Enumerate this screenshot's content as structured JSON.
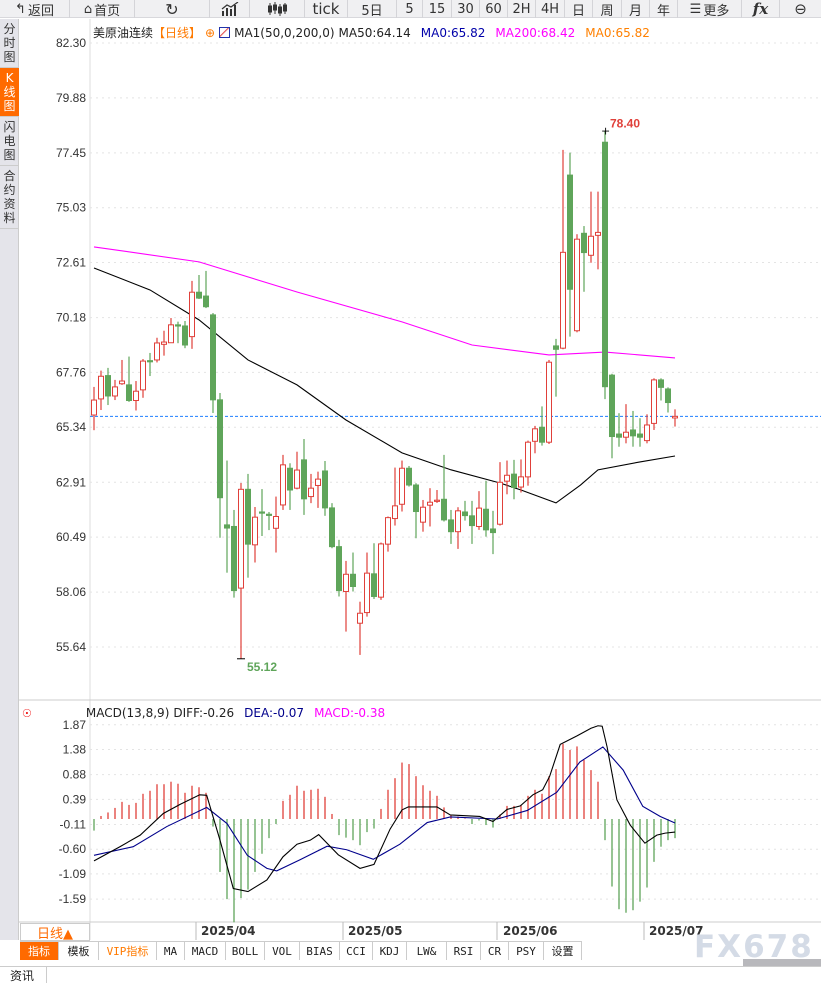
{
  "toolbar": {
    "back": "返回",
    "home": "首页",
    "tick": "tick",
    "items": [
      "5日",
      "5",
      "15",
      "30",
      "60",
      "2H",
      "4H",
      "日",
      "周",
      "月",
      "年"
    ],
    "more": "更多",
    "fx": "fx",
    "icons": [
      "back-arrow-icon",
      "home-icon",
      "refresh-icon",
      "indicator-chart-icon",
      "candlestick-icon",
      "menu-icon",
      "zoom-out-icon"
    ]
  },
  "sidebar": {
    "tabs": [
      "分时图",
      "K线图",
      "闪电图",
      "合约资料"
    ],
    "active": 1
  },
  "legend": {
    "symbol": "美原油连续",
    "period": "【日线】",
    "ma_name": "MA1(50,0,200,0)",
    "ma50": "MA50:64.14",
    "ma0a": "MA0:65.82",
    "ma200": "MA200:68.42",
    "ma0b": "MA0:65.82"
  },
  "colors": {
    "up": "#e0403a",
    "down": "#5fa55a",
    "ma50": "#000000",
    "ma200": "#ff00ff",
    "ma0a": "#0000aa",
    "ma0b": "#ff8000",
    "dea": "#00008b",
    "current": "#1e7fff",
    "accent": "#ff6a00"
  },
  "chart_data": [
    {
      "type": "candlestick",
      "title": "美原油连续 【日线】",
      "ylim": [
        55.64,
        82.3
      ],
      "y_ticks": [
        "82.30",
        "79.88",
        "77.45",
        "75.03",
        "72.61",
        "70.18",
        "67.76",
        "65.34",
        "62.91",
        "60.49",
        "58.06",
        "55.64"
      ],
      "x_labels": [
        {
          "index": 15,
          "label": "2025/04"
        },
        {
          "index": 36,
          "label": "2025/05"
        },
        {
          "index": 58,
          "label": "2025/06"
        },
        {
          "index": 79,
          "label": "2025/07"
        }
      ],
      "ohlc": [
        [
          65.88,
          67.12,
          65.21,
          66.54
        ],
        [
          66.59,
          67.84,
          66.1,
          67.59
        ],
        [
          67.62,
          67.96,
          66.32,
          66.72
        ],
        [
          66.72,
          67.43,
          66.54,
          67.12
        ],
        [
          67.26,
          68.31,
          67.21,
          67.38
        ],
        [
          67.21,
          68.46,
          66.46,
          66.52
        ],
        [
          66.52,
          67.38,
          66.08,
          66.93
        ],
        [
          66.99,
          68.35,
          66.64,
          68.26
        ],
        [
          68.28,
          68.62,
          67.6,
          68.26
        ],
        [
          68.31,
          69.29,
          68.2,
          69.06
        ],
        [
          69.0,
          69.6,
          68.5,
          69.1
        ],
        [
          69.07,
          70.16,
          69.06,
          69.86
        ],
        [
          69.86,
          70.0,
          69.05,
          69.84
        ],
        [
          69.81,
          70.03,
          68.83,
          68.97
        ],
        [
          69.34,
          71.8,
          68.8,
          71.3
        ],
        [
          71.3,
          72.06,
          71.0,
          71.04
        ],
        [
          71.13,
          72.24,
          70.6,
          70.66
        ],
        [
          70.3,
          70.38,
          65.97,
          66.55
        ],
        [
          66.55,
          66.85,
          60.46,
          62.23
        ],
        [
          61.03,
          63.87,
          58.92,
          60.89
        ],
        [
          60.96,
          61.69,
          57.82,
          58.13
        ],
        [
          58.24,
          62.88,
          55.12,
          62.6
        ],
        [
          62.6,
          63.28,
          58.7,
          60.18
        ],
        [
          60.15,
          61.82,
          59.37,
          61.37
        ],
        [
          61.6,
          62.61,
          60.54,
          61.55
        ],
        [
          61.5,
          61.6,
          60.8,
          61.48
        ],
        [
          60.88,
          62.28,
          59.81,
          61.4
        ],
        [
          61.91,
          64.12,
          61.69,
          63.68
        ],
        [
          63.53,
          63.75,
          61.69,
          62.57
        ],
        [
          62.65,
          64.26,
          62.6,
          63.45
        ],
        [
          63.9,
          64.82,
          61.47,
          62.18
        ],
        [
          62.28,
          63.28,
          61.99,
          62.65
        ],
        [
          62.77,
          63.38,
          61.78,
          63.05
        ],
        [
          63.41,
          63.85,
          61.43,
          61.78
        ],
        [
          61.78,
          61.99,
          60.0,
          60.07
        ],
        [
          60.07,
          60.37,
          57.87,
          58.13
        ],
        [
          58.09,
          59.44,
          56.32,
          58.85
        ],
        [
          58.85,
          59.81,
          58.09,
          58.31
        ],
        [
          56.69,
          57.64,
          55.29,
          57.13
        ],
        [
          57.16,
          59.81,
          56.98,
          58.9
        ],
        [
          58.87,
          60.22,
          57.76,
          57.87
        ],
        [
          57.84,
          60.25,
          57.72,
          60.19
        ],
        [
          60.18,
          61.4,
          59.85,
          61.35
        ],
        [
          61.31,
          63.56,
          61.0,
          61.87
        ],
        [
          61.94,
          63.87,
          61.62,
          63.53
        ],
        [
          63.53,
          63.63,
          62.72,
          62.79
        ],
        [
          62.79,
          62.87,
          60.44,
          61.62
        ],
        [
          61.15,
          62.13,
          60.73,
          61.81
        ],
        [
          61.9,
          62.65,
          60.96,
          62.03
        ],
        [
          62.08,
          62.57,
          62.0,
          62.12
        ],
        [
          62.16,
          64.12,
          61.18,
          61.25
        ],
        [
          61.25,
          61.69,
          60.19,
          60.73
        ],
        [
          60.73,
          61.81,
          59.97,
          61.65
        ],
        [
          61.6,
          62.09,
          61.22,
          61.44
        ],
        [
          61.43,
          62.09,
          60.19,
          61.0
        ],
        [
          60.96,
          62.52,
          60.81,
          61.77
        ],
        [
          61.72,
          62.98,
          60.51,
          60.81
        ],
        [
          60.85,
          61.65,
          59.74,
          60.69
        ],
        [
          61.06,
          63.8,
          61.0,
          62.91
        ],
        [
          62.96,
          63.87,
          62.38,
          63.22
        ],
        [
          63.27,
          63.9,
          62.16,
          62.68
        ],
        [
          62.7,
          63.92,
          62.46,
          63.15
        ],
        [
          63.15,
          64.75,
          62.76,
          64.68
        ],
        [
          64.72,
          65.4,
          64.19,
          65.27
        ],
        [
          65.34,
          66.26,
          64.53,
          64.68
        ],
        [
          64.68,
          68.31,
          64.6,
          68.21
        ],
        [
          68.93,
          69.24,
          66.69,
          68.78
        ],
        [
          68.83,
          77.58,
          68.78,
          73.06
        ],
        [
          76.47,
          77.46,
          69.34,
          71.43
        ],
        [
          69.6,
          73.86,
          69.53,
          73.64
        ],
        [
          73.9,
          74.22,
          71.32,
          73.05
        ],
        [
          72.93,
          75.74,
          72.6,
          73.77
        ],
        [
          73.81,
          75.74,
          72.31,
          73.94
        ],
        [
          77.92,
          78.4,
          66.58,
          67.13
        ],
        [
          67.64,
          67.7,
          63.97,
          64.93
        ],
        [
          65.04,
          65.96,
          64.48,
          64.9
        ],
        [
          64.9,
          66.36,
          64.63,
          65.12
        ],
        [
          65.22,
          66.06,
          64.48,
          64.96
        ],
        [
          65.04,
          65.74,
          64.48,
          64.9
        ],
        [
          64.75,
          65.91,
          64.63,
          65.44
        ],
        [
          65.51,
          67.5,
          65.22,
          67.43
        ],
        [
          67.43,
          67.5,
          66.52,
          67.1
        ],
        [
          67.03,
          67.1,
          65.99,
          66.43
        ],
        [
          65.75,
          66.13,
          65.37,
          65.82
        ]
      ],
      "ma50": [
        [
          0,
          72.37
        ],
        [
          8,
          71.4
        ],
        [
          15,
          70.08
        ],
        [
          22,
          68.31
        ],
        [
          29,
          67.21
        ],
        [
          36,
          65.66
        ],
        [
          44,
          64.21
        ],
        [
          51,
          63.46
        ],
        [
          58,
          62.88
        ],
        [
          61,
          62.57
        ],
        [
          66,
          62.0
        ],
        [
          69.5,
          62.79
        ],
        [
          72,
          63.46
        ],
        [
          78,
          63.81
        ],
        [
          83,
          64.07
        ]
      ],
      "ma200": [
        [
          0,
          73.3
        ],
        [
          15,
          72.64
        ],
        [
          29,
          71.31
        ],
        [
          44,
          69.99
        ],
        [
          54,
          68.97
        ],
        [
          65,
          68.53
        ],
        [
          73,
          68.66
        ],
        [
          83,
          68.4
        ]
      ],
      "current_price": 65.82,
      "high_label": "78.40",
      "high_index": 73,
      "low_label": "55.12",
      "low_index": 21
    },
    {
      "type": "macd",
      "title": "MACD(13,8,9)",
      "diff_label": "DIFF:-0.26",
      "dea_label": "DEA:-0.07",
      "macd_label": "MACD:-0.38",
      "ylim": [
        -2.05,
        2.0
      ],
      "y_ticks": [
        "1.87",
        "1.38",
        "0.88",
        "0.39",
        "-0.11",
        "-0.60",
        "-1.09",
        "-1.59"
      ],
      "histogram": [
        -0.23,
        0.06,
        0.13,
        0.22,
        0.34,
        0.28,
        0.32,
        0.5,
        0.56,
        0.69,
        0.69,
        0.74,
        0.7,
        0.52,
        0.66,
        0.63,
        0.52,
        -0.15,
        -1.05,
        -1.59,
        -2.05,
        -1.57,
        -1.4,
        -1.05,
        -0.69,
        -0.38,
        -0.1,
        0.36,
        0.48,
        0.66,
        0.56,
        0.58,
        0.6,
        0.44,
        0.1,
        -0.32,
        -0.37,
        -0.42,
        -0.52,
        -0.26,
        -0.19,
        0.2,
        0.58,
        0.81,
        1.12,
        1.09,
        0.85,
        0.67,
        0.56,
        0.46,
        0.23,
        0.07,
        0.05,
        0.01,
        -0.1,
        -0.03,
        -0.12,
        -0.17,
        0.09,
        0.26,
        0.26,
        0.28,
        0.46,
        0.58,
        0.5,
        0.85,
        0.99,
        1.49,
        1.37,
        1.44,
        1.17,
        0.97,
        0.74,
        -0.42,
        -1.34,
        -1.79,
        -1.86,
        -1.81,
        -1.64,
        -1.36,
        -0.85,
        -0.55,
        -0.42,
        -0.38
      ],
      "diff": [
        [
          0,
          -0.83
        ],
        [
          3.7,
          -0.55
        ],
        [
          6.6,
          -0.32
        ],
        [
          9.9,
          0.11
        ],
        [
          12.3,
          0.29
        ],
        [
          15.1,
          0.48
        ],
        [
          16.1,
          0.47
        ],
        [
          18,
          -0.42
        ],
        [
          19.9,
          -1.38
        ],
        [
          22,
          -1.44
        ],
        [
          24.7,
          -1.21
        ],
        [
          27,
          -0.75
        ],
        [
          29,
          -0.5
        ],
        [
          30.9,
          -0.42
        ],
        [
          32.1,
          -0.31
        ],
        [
          34.9,
          -0.71
        ],
        [
          38,
          -0.98
        ],
        [
          40,
          -0.9
        ],
        [
          42.3,
          -0.2
        ],
        [
          44,
          0.18
        ],
        [
          44.9,
          0.24
        ],
        [
          49,
          0.24
        ],
        [
          50.9,
          0.08
        ],
        [
          55.1,
          0.05
        ],
        [
          57,
          -0.05
        ],
        [
          59,
          0.19
        ],
        [
          60.9,
          0.26
        ],
        [
          62.7,
          0.48
        ],
        [
          64.1,
          0.58
        ],
        [
          65.1,
          0.85
        ],
        [
          66.6,
          1.48
        ],
        [
          69,
          1.65
        ],
        [
          71,
          1.8
        ],
        [
          72,
          1.85
        ],
        [
          72.6,
          1.84
        ],
        [
          73.3,
          1.43
        ],
        [
          74.7,
          0.38
        ],
        [
          76.6,
          -0.12
        ],
        [
          78.7,
          -0.48
        ],
        [
          80.4,
          -0.32
        ],
        [
          81.6,
          -0.28
        ],
        [
          83,
          -0.26
        ]
      ],
      "dea": [
        [
          0,
          -0.72
        ],
        [
          5.6,
          -0.55
        ],
        [
          10.4,
          -0.15
        ],
        [
          16.1,
          0.23
        ],
        [
          19,
          -0.09
        ],
        [
          21.9,
          -0.72
        ],
        [
          24.7,
          -0.98
        ],
        [
          26.1,
          -1.03
        ],
        [
          29.4,
          -0.81
        ],
        [
          33.3,
          -0.54
        ],
        [
          36.1,
          -0.61
        ],
        [
          39.9,
          -0.8
        ],
        [
          43.7,
          -0.5
        ],
        [
          47.6,
          -0.07
        ],
        [
          50.9,
          0.04
        ],
        [
          57.6,
          0.0
        ],
        [
          61.9,
          0.17
        ],
        [
          66.1,
          0.53
        ],
        [
          69.4,
          1.13
        ],
        [
          72.7,
          1.43
        ],
        [
          75.6,
          0.97
        ],
        [
          78.4,
          0.25
        ],
        [
          80.9,
          0.05
        ],
        [
          83,
          -0.08
        ]
      ]
    }
  ],
  "date_axis": {
    "period_button": "日线▲",
    "labels": [
      "2025/04",
      "2025/05",
      "2025/06",
      "2025/07"
    ]
  },
  "bottom_tabs": {
    "items": [
      "指标",
      "模板",
      "VIP指标",
      "MA",
      "MACD",
      "BOLL",
      "VOL",
      "BIAS",
      "CCI",
      "KDJ",
      "LW&",
      "RSI",
      "CR",
      "PSY",
      "设置"
    ],
    "active": 0
  },
  "footer": {
    "news_tab": "资讯",
    "watermark": "FX678"
  }
}
